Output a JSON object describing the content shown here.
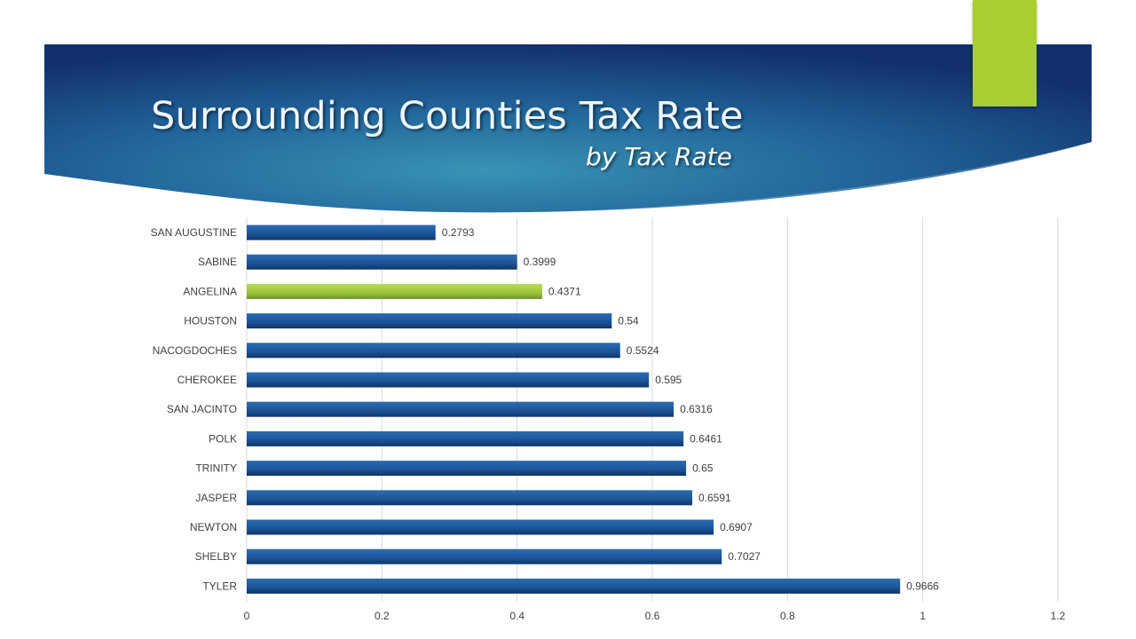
{
  "slide": {
    "title": "Surrounding Counties Tax Rate",
    "subtitle": "by Tax Rate",
    "accent_color": "#a6cf2f",
    "banner_color": "#1b4f86"
  },
  "chart_data": {
    "type": "bar",
    "orientation": "horizontal",
    "categories": [
      "SAN AUGUSTINE",
      "SABINE",
      "ANGELINA",
      "HOUSTON",
      "NACOGDOCHES",
      "CHEROKEE",
      "SAN JACINTO",
      "POLK",
      "TRINITY",
      "JASPER",
      "NEWTON",
      "SHELBY",
      "TYLER"
    ],
    "values": [
      0.2793,
      0.3999,
      0.4371,
      0.54,
      0.5524,
      0.595,
      0.6316,
      0.6461,
      0.65,
      0.6591,
      0.6907,
      0.7027,
      0.9666
    ],
    "value_labels": [
      "0.2793",
      "0.3999",
      "0.4371",
      "0.54",
      "0.5524",
      "0.595",
      "0.6316",
      "0.6461",
      "0.65",
      "0.6591",
      "0.6907",
      "0.7027",
      "0.9666"
    ],
    "highlight": "ANGELINA",
    "colors": {
      "bar": "#1f5a9e",
      "highlight": "#9bc53d"
    },
    "xlim": [
      0,
      1.2
    ],
    "xticks": [
      "0",
      "0.2",
      "0.4",
      "0.6",
      "0.8",
      "1",
      "1.2"
    ],
    "grid": true,
    "legend": "none"
  }
}
